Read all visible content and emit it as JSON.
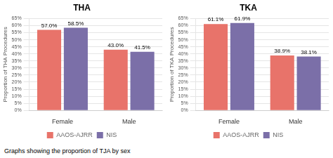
{
  "chart_data": [
    {
      "type": "bar",
      "title": "THA",
      "caption": "Graphs showing the proportion of TJA by sex",
      "categories": [
        "Female",
        "Male"
      ],
      "series": [
        {
          "name": "AAOS-AJRR",
          "color": "#E8736A",
          "values": [
            57.0,
            43.0
          ],
          "value_labels": [
            "57.0%",
            "43.0%"
          ]
        },
        {
          "name": "NIS",
          "color": "#7B6FA8",
          "values": [
            58.5,
            41.5
          ],
          "value_labels": [
            "58.5%",
            "41.5%"
          ]
        }
      ],
      "y_label": "Proportion of THA Procedures",
      "ylim": [
        0,
        65
      ],
      "yticks": [
        {
          "value": 0,
          "label": "0%"
        },
        {
          "value": 5,
          "label": "5%"
        },
        {
          "value": 10,
          "label": "10%"
        },
        {
          "value": 15,
          "label": "15%"
        },
        {
          "value": 20,
          "label": "20%"
        },
        {
          "value": 25,
          "label": "25%"
        },
        {
          "value": 30,
          "label": "30%"
        },
        {
          "value": 35,
          "label": "35%"
        },
        {
          "value": 40,
          "label": "40%"
        },
        {
          "value": 45,
          "label": "45%"
        },
        {
          "value": 50,
          "label": "50%"
        },
        {
          "value": 55,
          "label": "55%"
        },
        {
          "value": 60,
          "label": "60%"
        },
        {
          "value": 65,
          "label": "65%"
        }
      ],
      "grid": true,
      "legend": "bottom",
      "data_labels": true
    },
    {
      "type": "bar",
      "title": "TKA",
      "categories": [
        "Female",
        "Male"
      ],
      "series": [
        {
          "name": "AAOS-AJRR",
          "color": "#E8736A",
          "values": [
            61.1,
            38.9
          ],
          "value_labels": [
            "61.1%",
            "38.9%"
          ]
        },
        {
          "name": "NIS",
          "color": "#7B6FA8",
          "values": [
            61.9,
            38.1
          ],
          "value_labels": [
            "61.9%",
            "38.1%"
          ]
        }
      ],
      "y_label": "Proportion of TKA Procedures",
      "ylim": [
        0,
        65
      ],
      "yticks": [
        {
          "value": 0,
          "label": "0%"
        },
        {
          "value": 5,
          "label": "5%"
        },
        {
          "value": 10,
          "label": "10%"
        },
        {
          "value": 15,
          "label": "15%"
        },
        {
          "value": 20,
          "label": "20%"
        },
        {
          "value": 25,
          "label": "25%"
        },
        {
          "value": 30,
          "label": "30%"
        },
        {
          "value": 35,
          "label": "35%"
        },
        {
          "value": 40,
          "label": "40%"
        },
        {
          "value": 45,
          "label": "45%"
        },
        {
          "value": 50,
          "label": "50%"
        },
        {
          "value": 55,
          "label": "55%"
        },
        {
          "value": 60,
          "label": "60%"
        },
        {
          "value": 65,
          "label": "65%"
        }
      ],
      "grid": true,
      "legend": "bottom",
      "data_labels": true
    }
  ]
}
